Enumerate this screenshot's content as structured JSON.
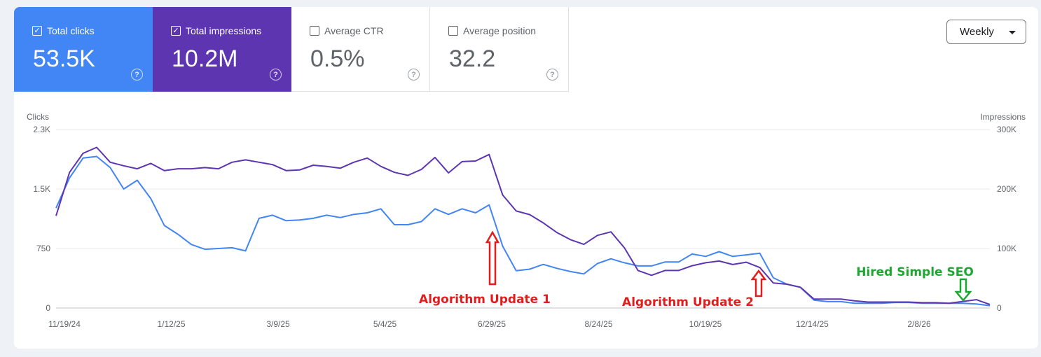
{
  "metrics": [
    {
      "label": "Total clicks",
      "value": "53.5K",
      "checked": true,
      "color": "#4285f4"
    },
    {
      "label": "Total impressions",
      "value": "10.2M",
      "checked": true,
      "color": "#5e35b1"
    },
    {
      "label": "Average CTR",
      "value": "0.5%",
      "checked": false
    },
    {
      "label": "Average position",
      "value": "32.2",
      "checked": false
    }
  ],
  "period_select": {
    "value": "Weekly"
  },
  "help_glyph": "?",
  "check_glyph": "✓",
  "chart_data": {
    "type": "line",
    "left_axis": {
      "label": "Clicks",
      "ticks": [
        "0",
        "750",
        "1.5K",
        "2.3K"
      ],
      "tick_values": [
        0,
        750,
        1500,
        2250
      ],
      "ylim": [
        0,
        2250
      ]
    },
    "right_axis": {
      "label": "Impressions",
      "ticks": [
        "0",
        "100K",
        "200K",
        "300K"
      ],
      "tick_values": [
        0,
        100000,
        200000,
        300000
      ],
      "ylim": [
        0,
        300000
      ]
    },
    "x_ticks": [
      "11/19/24",
      "1/12/25",
      "3/9/25",
      "5/4/25",
      "6/29/25",
      "8/24/25",
      "10/19/25",
      "12/14/25",
      "2/8/26"
    ],
    "grid": true,
    "series": [
      {
        "axis": "left",
        "color": "#4285f4",
        "values": [
          1260,
          1640,
          1890,
          1910,
          1770,
          1500,
          1610,
          1380,
          1040,
          930,
          800,
          740,
          750,
          760,
          720,
          1130,
          1170,
          1100,
          1110,
          1130,
          1170,
          1140,
          1180,
          1200,
          1250,
          1050,
          1050,
          1090,
          1250,
          1180,
          1250,
          1200,
          1300,
          780,
          470,
          490,
          550,
          500,
          460,
          430,
          560,
          620,
          570,
          530,
          530,
          580,
          580,
          680,
          650,
          710,
          650,
          670,
          690,
          380,
          300,
          260,
          100,
          80,
          80,
          60,
          60,
          60,
          70,
          70,
          60,
          60,
          60,
          60,
          50,
          30
        ]
      },
      {
        "axis": "right",
        "color": "#5e35b1",
        "values": [
          155000,
          228000,
          260000,
          270000,
          245000,
          239000,
          234000,
          243000,
          231000,
          234000,
          234000,
          236000,
          234000,
          245000,
          249000,
          245000,
          241000,
          231000,
          232000,
          240000,
          238000,
          235000,
          245000,
          252000,
          238000,
          228000,
          223000,
          233000,
          253000,
          227000,
          246000,
          247000,
          258000,
          190000,
          163000,
          157000,
          143000,
          127000,
          115000,
          107000,
          122000,
          128000,
          101000,
          63000,
          55000,
          63000,
          63000,
          71000,
          76000,
          79000,
          73000,
          77000,
          68000,
          42000,
          40000,
          35000,
          15000,
          15000,
          15000,
          12000,
          10000,
          10000,
          10000,
          10000,
          9000,
          9000,
          8000,
          11000,
          14000,
          6000
        ]
      }
    ],
    "annotations": [
      {
        "text": "Algorithm Update 1",
        "color": "#e31d1d",
        "arrow": "up",
        "at_index": 32
      },
      {
        "text": "Algorithm Update 2",
        "color": "#e31d1d",
        "arrow": "up",
        "at_index": 52
      },
      {
        "text": "Hired Simple SEO",
        "color": "#1ea632",
        "arrow": "down",
        "at_index": 66
      }
    ]
  }
}
